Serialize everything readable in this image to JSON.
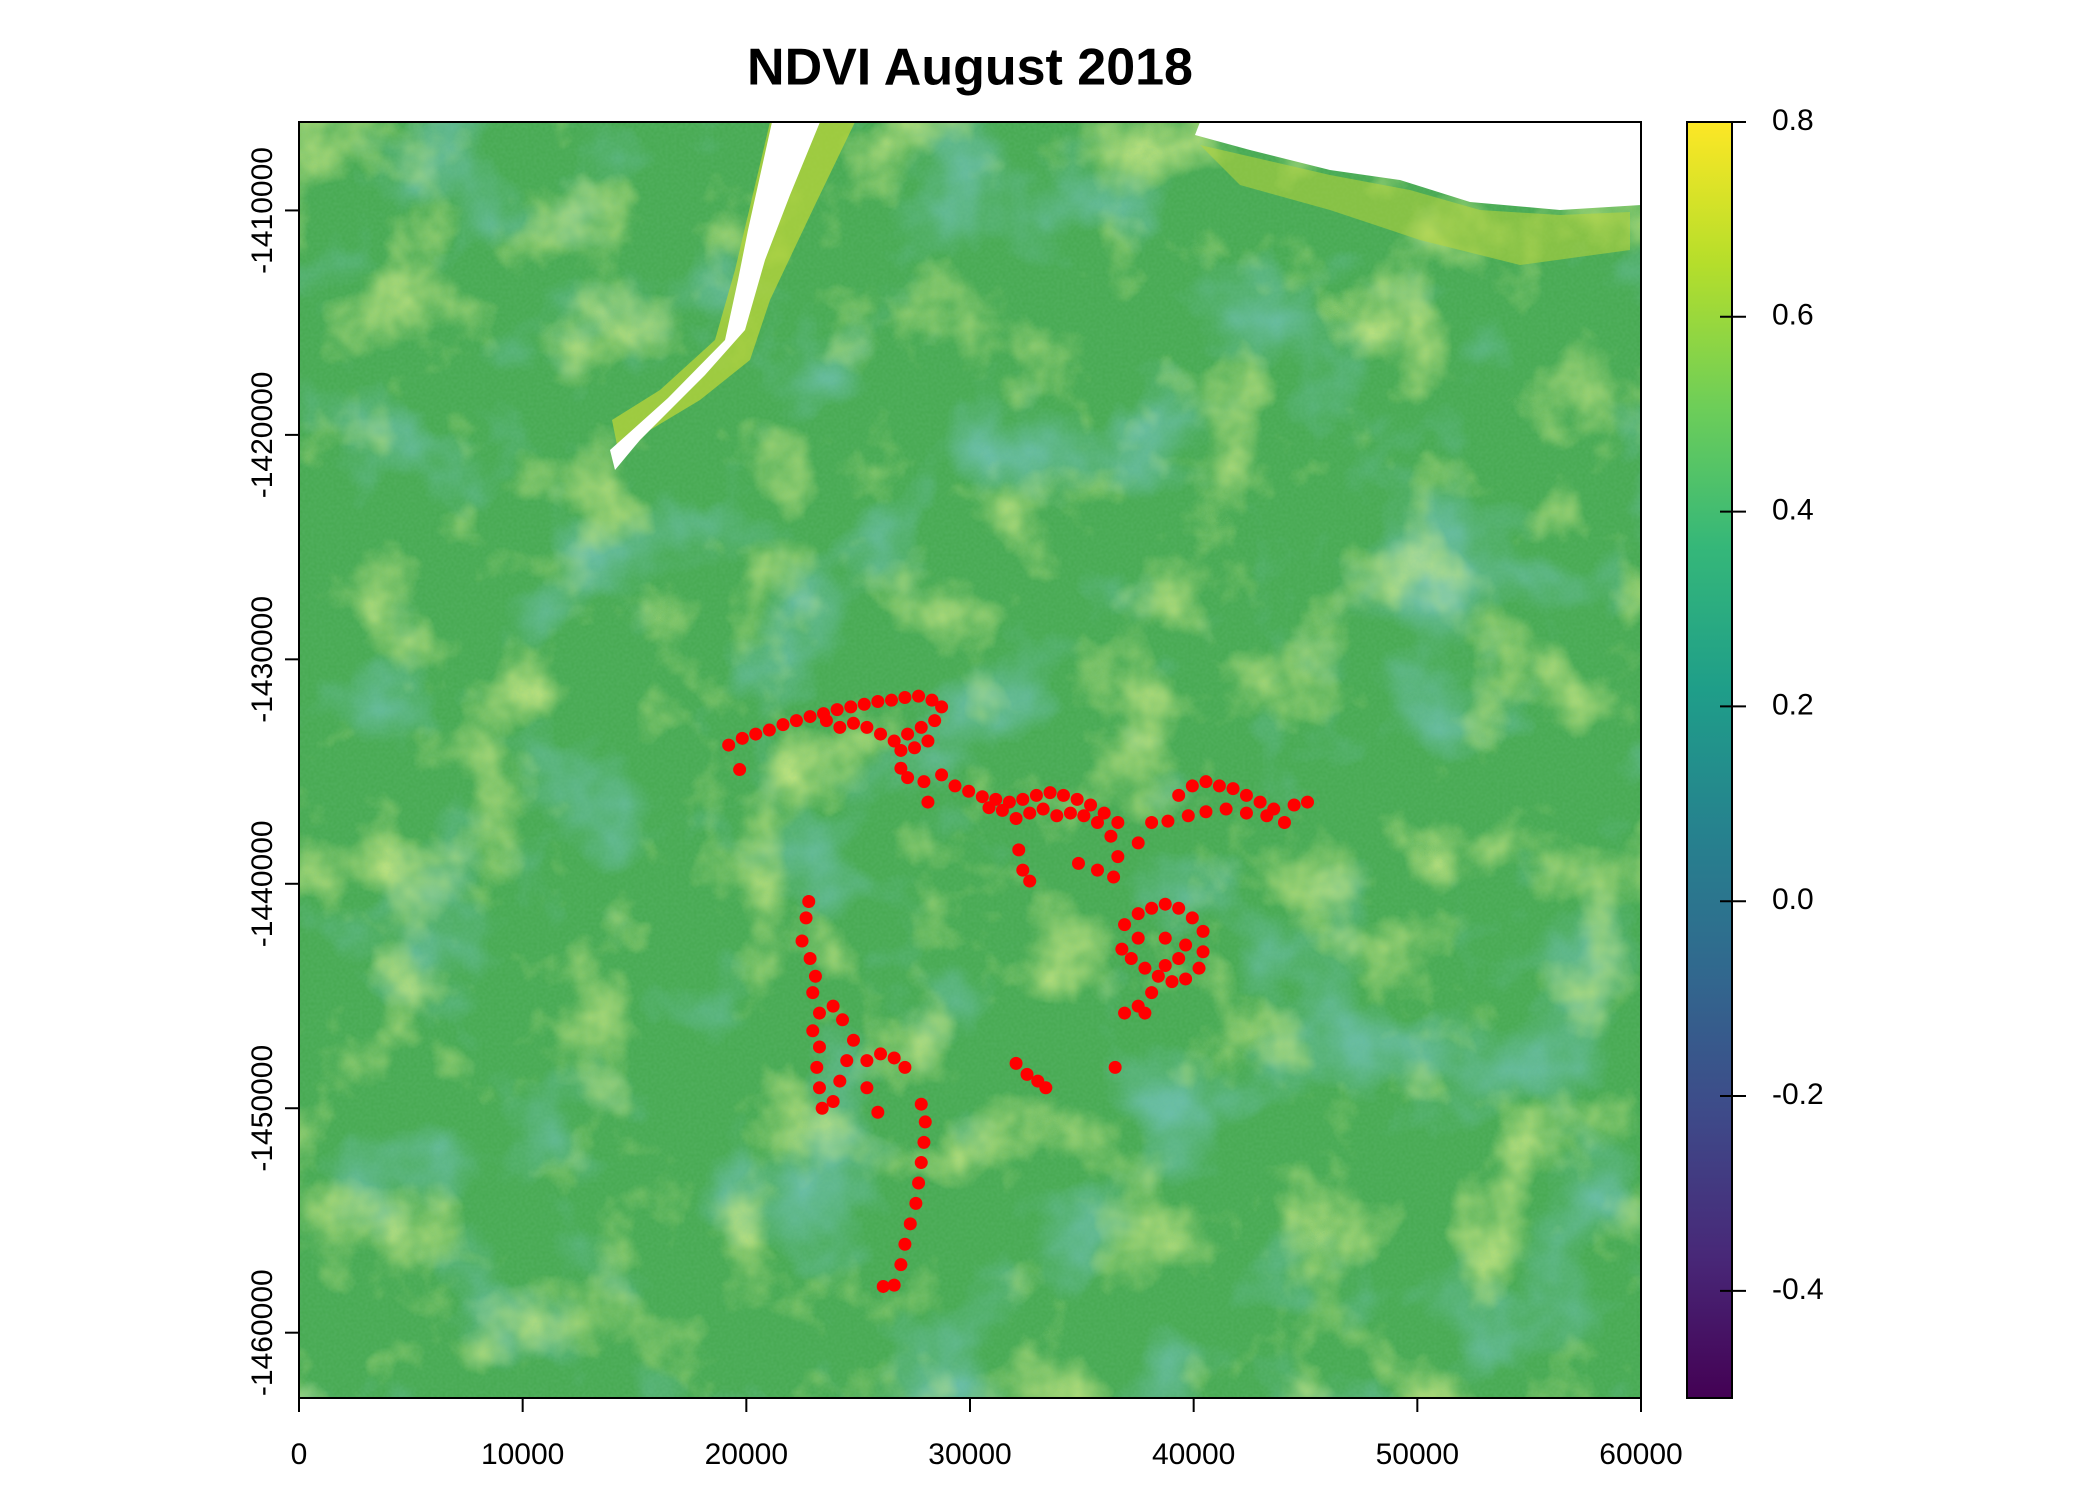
{
  "chart_data": {
    "type": "scatter",
    "title": "NDVI August 2018",
    "x": [
      19210,
      19820,
      20420,
      21030,
      21640,
      22240,
      22850,
      23450,
      24060,
      24670,
      25270,
      25880,
      26490,
      27090,
      27700,
      28300,
      28730,
      28420,
      27820,
      27210,
      26610,
      26000,
      25390,
      24790,
      24180,
      23580,
      28120,
      27520,
      26910,
      19700,
      26910,
      27210,
      27940,
      28730,
      29330,
      29940,
      30550,
      31150,
      31760,
      32360,
      32970,
      33580,
      34180,
      34790,
      35390,
      36000,
      36610,
      35700,
      35090,
      34490,
      33880,
      33270,
      32670,
      32060,
      31450,
      30850,
      36300,
      36610,
      36420,
      35700,
      32180,
      32360,
      32670,
      34850,
      37520,
      38120,
      38850,
      28120,
      39330,
      39940,
      40550,
      41150,
      41760,
      42360,
      42970,
      43580,
      44060,
      43270,
      42360,
      41450,
      40550,
      39760,
      45090,
      44490,
      36910,
      37520,
      38120,
      38730,
      39330,
      39940,
      40420,
      40420,
      40240,
      39640,
      39030,
      38420,
      37820,
      37210,
      36790,
      37520,
      38730,
      39640,
      38120,
      37520,
      36910,
      37820,
      38730,
      39330,
      22790,
      22670,
      22490,
      22850,
      23090,
      22970,
      23270,
      22970,
      23270,
      23150,
      23270,
      23390,
      23880,
      24180,
      24490,
      24790,
      24300,
      23880,
      25390,
      26000,
      26610,
      27090,
      25390,
      25880,
      27820,
      28000,
      27940,
      27820,
      27700,
      27580,
      27330,
      27090,
      26910,
      26610,
      26120,
      32060,
      32550,
      33030,
      33390,
      36490
    ],
    "y": [
      -1433820,
      -1433520,
      -1433330,
      -1433150,
      -1432910,
      -1432730,
      -1432550,
      -1432420,
      -1432240,
      -1432120,
      -1432000,
      -1431880,
      -1431820,
      -1431700,
      -1431640,
      -1431820,
      -1432120,
      -1432730,
      -1433030,
      -1433330,
      -1433640,
      -1433330,
      -1433030,
      -1432850,
      -1433030,
      -1432730,
      -1433640,
      -1433940,
      -1434060,
      -1434910,
      -1434850,
      -1435270,
      -1435450,
      -1435150,
      -1435640,
      -1435880,
      -1436120,
      -1436240,
      -1436360,
      -1436240,
      -1436060,
      -1435940,
      -1436060,
      -1436240,
      -1436490,
      -1436850,
      -1437270,
      -1437270,
      -1436970,
      -1436850,
      -1436970,
      -1436670,
      -1436850,
      -1437090,
      -1436730,
      -1436610,
      -1437880,
      -1438790,
      -1439700,
      -1439390,
      -1438490,
      -1439390,
      -1439880,
      -1439090,
      -1438180,
      -1437270,
      -1437210,
      -1436360,
      -1436060,
      -1435640,
      -1435450,
      -1435640,
      -1435760,
      -1436060,
      -1436360,
      -1436670,
      -1437270,
      -1436970,
      -1436850,
      -1436670,
      -1436790,
      -1436970,
      -1436360,
      -1436490,
      -1441820,
      -1441330,
      -1441090,
      -1440910,
      -1441090,
      -1441520,
      -1442120,
      -1443030,
      -1443760,
      -1444240,
      -1444360,
      -1444120,
      -1443760,
      -1443330,
      -1442910,
      -1442420,
      -1442420,
      -1442730,
      -1444850,
      -1445450,
      -1445760,
      -1445760,
      -1443640,
      -1443330,
      -1440790,
      -1441520,
      -1442550,
      -1443330,
      -1444120,
      -1444850,
      -1445760,
      -1446550,
      -1447270,
      -1448180,
      -1449090,
      -1450000,
      -1449700,
      -1448790,
      -1447880,
      -1446970,
      -1446060,
      -1445450,
      -1447880,
      -1447580,
      -1447760,
      -1448180,
      -1449090,
      -1450180,
      -1449820,
      -1450610,
      -1451520,
      -1452420,
      -1453330,
      -1454240,
      -1455150,
      -1456060,
      -1456970,
      -1457880,
      -1457940,
      -1448000,
      -1448490,
      -1448790,
      -1449090,
      -1448180
    ],
    "color": "#ff0000",
    "xlim": [
      0,
      60000
    ],
    "xticks": [
      0,
      10000,
      20000,
      30000,
      40000,
      50000,
      60000
    ],
    "ylim": [
      -1462910,
      -1406060
    ],
    "yticks": [
      -1410000,
      -1420000,
      -1430000,
      -1440000,
      -1450000,
      -1460000
    ],
    "colorbar": {
      "zlim": [
        -0.51,
        0.8
      ],
      "ticks": [
        -0.4,
        -0.2,
        {
          "value": 0,
          "label": "0.0"
        },
        0.2,
        0.4,
        0.6,
        0.8
      ],
      "colors": [
        "#440154",
        "#482878",
        "#3e4a89",
        "#31688e",
        "#26828e",
        "#1f9e89",
        "#35b779",
        "#6ece58",
        "#b5de2b",
        "#fde725"
      ]
    }
  }
}
